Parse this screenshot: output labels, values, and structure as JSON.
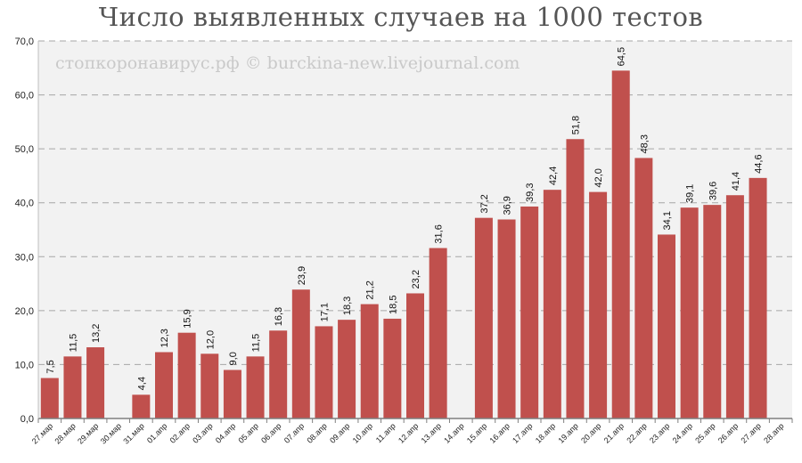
{
  "chart_data": {
    "type": "bar",
    "title": "Число выявленных случаев на 1000 тестов",
    "watermark": "стопкоронавирус.рф © burckina-new.livejournal.com",
    "xlabel": "",
    "ylabel": "",
    "ylim": [
      0,
      70
    ],
    "yticks": [
      "0,0",
      "10,0",
      "20,0",
      "30,0",
      "40,0",
      "50,0",
      "60,0",
      "70,0"
    ],
    "grid": true,
    "bar_color": "#c0504d",
    "plot_bg": "#f2f2f2",
    "categories": [
      "27.мар",
      "28.мар",
      "29.мар",
      "30.мар",
      "31.мар",
      "01.апр",
      "02.апр",
      "03.апр",
      "04.апр",
      "05.апр",
      "06.апр",
      "07.апр",
      "08.апр",
      "09.апр",
      "10.апр",
      "11.апр",
      "12.апр",
      "13.апр",
      "14.апр",
      "15.апр",
      "16.апр",
      "17.апр",
      "18.апр",
      "19.апр",
      "20.апр",
      "21.апр",
      "22.апр",
      "23.апр",
      "24.апр",
      "25.апр",
      "26.апр",
      "27.апр",
      "28.апр"
    ],
    "values": [
      7.5,
      11.5,
      13.2,
      null,
      4.4,
      12.3,
      15.9,
      12.0,
      9.0,
      11.5,
      16.3,
      23.9,
      17.1,
      18.3,
      21.2,
      18.5,
      23.2,
      31.6,
      null,
      37.2,
      36.9,
      39.3,
      42.4,
      51.8,
      42.0,
      64.5,
      48.3,
      34.1,
      39.1,
      39.6,
      41.4,
      44.6,
      null
    ],
    "labels": [
      "7,5",
      "11,5",
      "13,2",
      "",
      "4,4",
      "12,3",
      "15,9",
      "12,0",
      "9,0",
      "11,5",
      "16,3",
      "23,9",
      "17,1",
      "18,3",
      "21,2",
      "18,5",
      "23,2",
      "31,6",
      "",
      "37,2",
      "36,9",
      "39,3",
      "42,4",
      "51,8",
      "42,0",
      "64,5",
      "48,3",
      "34,1",
      "39,1",
      "39,6",
      "41,4",
      "44,6",
      ""
    ]
  }
}
